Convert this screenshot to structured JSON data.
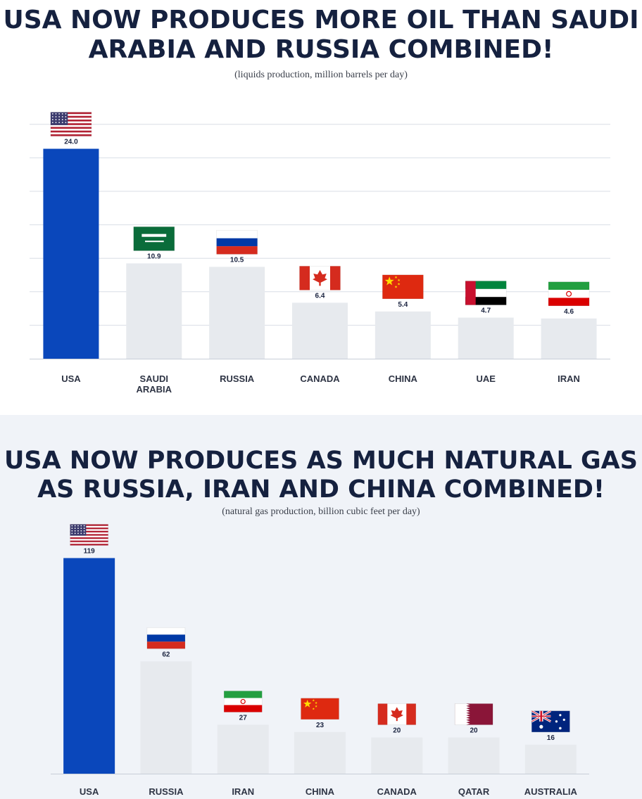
{
  "charts": [
    {
      "title": "USA NOW PRODUCES MORE OIL THAN SAUDI ARABIA AND RUSSIA COMBINED!",
      "subtitle": "(liquids production, million barrels per day)",
      "chart_data": {
        "type": "bar",
        "title": "USA NOW PRODUCES MORE OIL THAN SAUDI ARABIA AND RUSSIA COMBINED!",
        "subtitle": "(liquids production, million barrels per day)",
        "categories": [
          "USA",
          "SAUDI ARABIA",
          "RUSSIA",
          "CANADA",
          "CHINA",
          "UAE",
          "IRAN"
        ],
        "category_labels": [
          "USA",
          "SAUDI\nARABIA",
          "RUSSIA",
          "CANADA",
          "CHINA",
          "UAE",
          "IRAN"
        ],
        "values": [
          24.0,
          10.9,
          10.5,
          6.4,
          5.4,
          4.7,
          4.6
        ],
        "value_labels": [
          "24.0",
          "10.9",
          "10.5",
          "6.4",
          "5.4",
          "4.7",
          "4.6"
        ],
        "flags": [
          "usa",
          "saudi-arabia",
          "russia",
          "canada",
          "china",
          "uae",
          "iran"
        ],
        "ylim": [
          0,
          27.5
        ],
        "grid": true,
        "legend": "none",
        "colors": {
          "highlight": "#0a47bb",
          "other": "#e7eaee",
          "grid": "#d9dee6",
          "axis": "#c8ced8"
        }
      }
    },
    {
      "title": "USA NOW PRODUCES AS MUCH NATURAL GAS AS RUSSIA, IRAN AND CHINA COMBINED!",
      "subtitle": "(natural gas production, billion cubic feet per day)",
      "chart_data": {
        "type": "bar",
        "title": "USA NOW PRODUCES AS MUCH NATURAL GAS AS RUSSIA, IRAN AND CHINA COMBINED!",
        "subtitle": "(natural gas production, billion cubic feet per day)",
        "categories": [
          "USA",
          "RUSSIA",
          "IRAN",
          "CHINA",
          "CANADA",
          "QATAR",
          "AUSTRALIA"
        ],
        "category_labels": [
          "USA",
          "RUSSIA",
          "IRAN",
          "CHINA",
          "CANADA",
          "QATAR",
          "AUSTRALIA"
        ],
        "values": [
          119,
          62,
          27,
          23,
          20,
          20,
          16
        ],
        "value_labels": [
          "119",
          "62",
          "27",
          "23",
          "20",
          "20",
          "16"
        ],
        "flags": [
          "usa",
          "russia",
          "iran",
          "china",
          "canada",
          "qatar",
          "australia"
        ],
        "ylim": [
          0,
          125
        ],
        "grid": false,
        "legend": "none",
        "colors": {
          "highlight": "#0a47bb",
          "other": "#e7eaee",
          "axis": "#c8ced8"
        }
      }
    }
  ]
}
